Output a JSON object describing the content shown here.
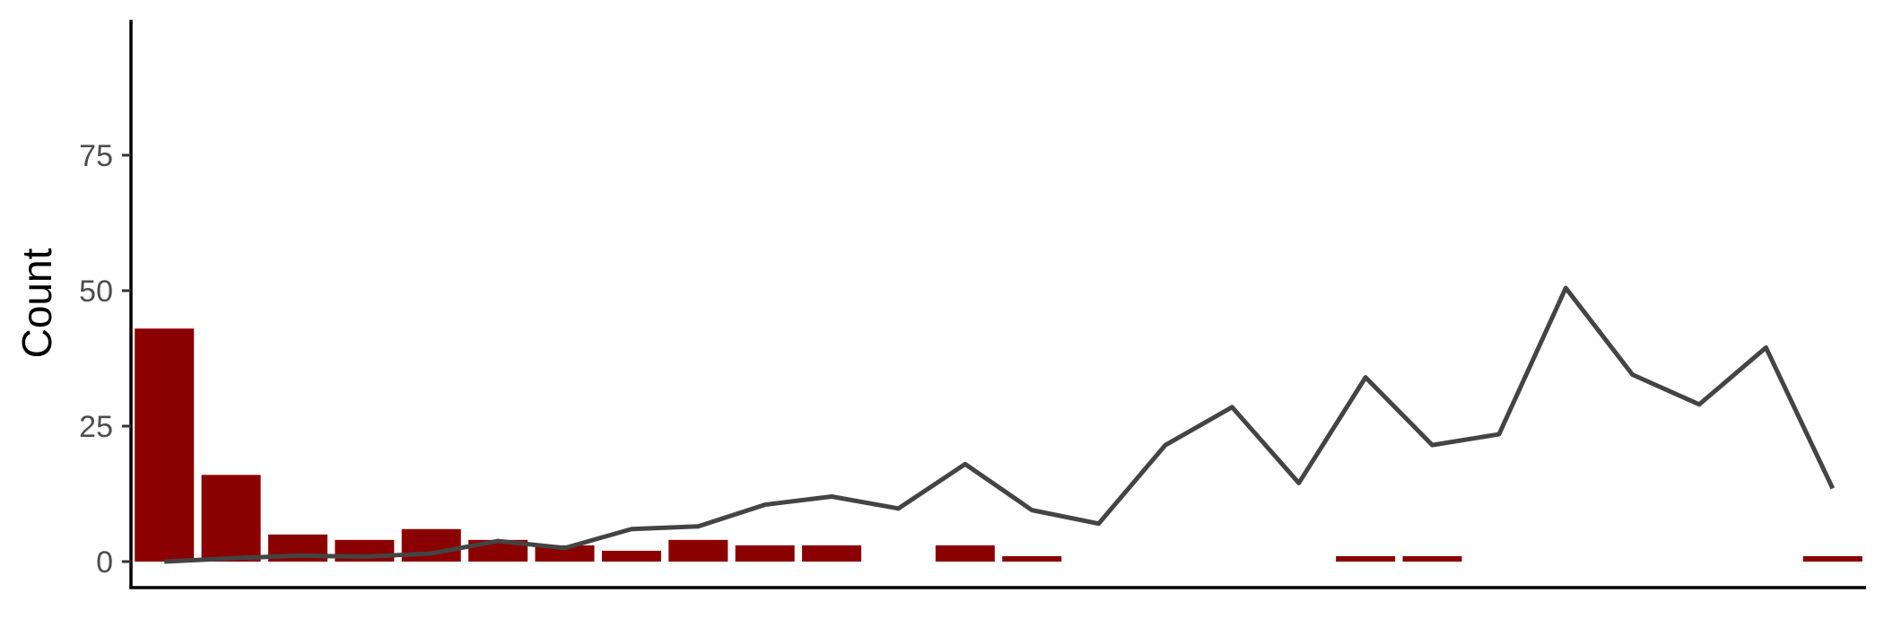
{
  "chart_data": {
    "type": "bar",
    "ylabel": "Count",
    "xlabel": "",
    "ylim": [
      0,
      100
    ],
    "xlim": [
      0.5,
      26.5
    ],
    "yticks": [
      0,
      25,
      50,
      75
    ],
    "ytick_labels": [
      "0",
      "25",
      "50",
      "75"
    ],
    "grid": false,
    "x_axis_ticks": false,
    "series": [
      {
        "type": "bar",
        "color": "#8b0000",
        "x": [
          1,
          2,
          3,
          4,
          5,
          6,
          7,
          8,
          9,
          10,
          11,
          12,
          13,
          14,
          15,
          16,
          17,
          18,
          19,
          20,
          21,
          22,
          23,
          24,
          25,
          26
        ],
        "values": [
          43,
          16,
          5,
          4,
          6,
          4,
          3,
          2,
          4,
          3,
          3,
          0,
          3,
          1,
          0,
          0,
          0,
          0,
          1,
          1,
          0,
          0,
          0,
          0,
          0,
          1
        ]
      },
      {
        "type": "line",
        "color": "#444444",
        "x": [
          1,
          2,
          3,
          4,
          5,
          6,
          7,
          8,
          9,
          10,
          11,
          12,
          13,
          14,
          15,
          16,
          17,
          18,
          19,
          20,
          21,
          22,
          23,
          24,
          25,
          26
        ],
        "values": [
          0,
          0.6,
          1.1,
          0.9,
          1.5,
          3.8,
          2.5,
          6,
          6.5,
          10.5,
          12,
          9.8,
          18,
          9.5,
          7,
          21.5,
          28.5,
          14.5,
          34,
          21.5,
          23.5,
          50.5,
          34.5,
          29,
          39.5,
          13.5
        ]
      }
    ]
  }
}
